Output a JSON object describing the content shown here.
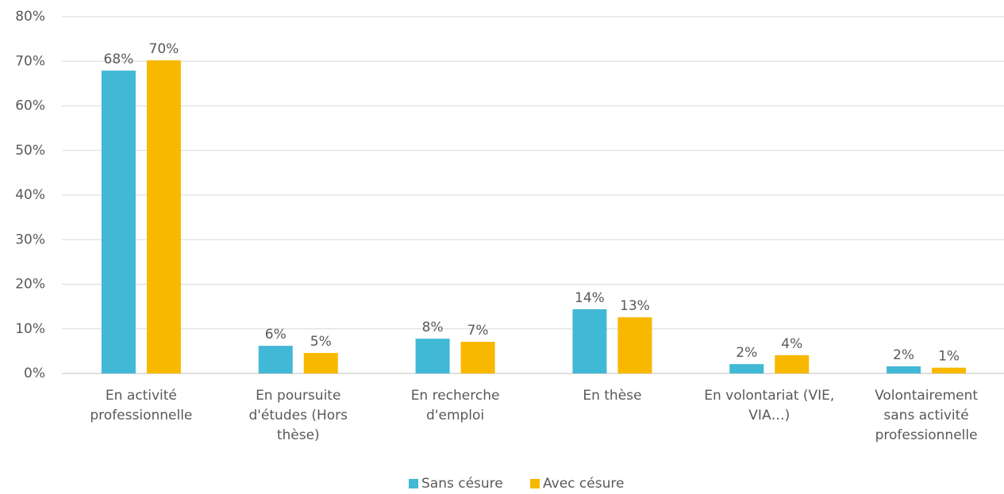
{
  "chart_data": {
    "type": "bar",
    "categories": [
      "En activité professionnelle",
      "En poursuite d'études (Hors thèse)",
      "En recherche d'emploi",
      "En thèse",
      "En volontariat (VIE, VIA…)",
      "Volontairement sans activité professionnelle"
    ],
    "series": [
      {
        "name": "Sans césure",
        "color": "#41b8d5",
        "values": [
          67.9,
          6.2,
          7.8,
          14.4,
          2.1,
          1.6
        ],
        "value_labels": [
          "68%",
          "6%",
          "8%",
          "14%",
          "2%",
          "2%"
        ]
      },
      {
        "name": "Avec césure",
        "color": "#f9b800",
        "values": [
          70.2,
          4.6,
          7.1,
          12.6,
          4.1,
          1.3
        ],
        "value_labels": [
          "70%",
          "5%",
          "7%",
          "13%",
          "4%",
          "1%"
        ]
      }
    ],
    "ylim": [
      0,
      80
    ],
    "yticks": [
      {
        "value": 0,
        "label": "0%"
      },
      {
        "value": 10,
        "label": "10%"
      },
      {
        "value": 20,
        "label": "20%"
      },
      {
        "value": 30,
        "label": "30%"
      },
      {
        "value": 40,
        "label": "40%"
      },
      {
        "value": 50,
        "label": "50%"
      },
      {
        "value": 60,
        "label": "60%"
      },
      {
        "value": 70,
        "label": "70%"
      },
      {
        "value": 80,
        "label": "80%"
      }
    ],
    "grid": true,
    "legend": "bottom"
  }
}
